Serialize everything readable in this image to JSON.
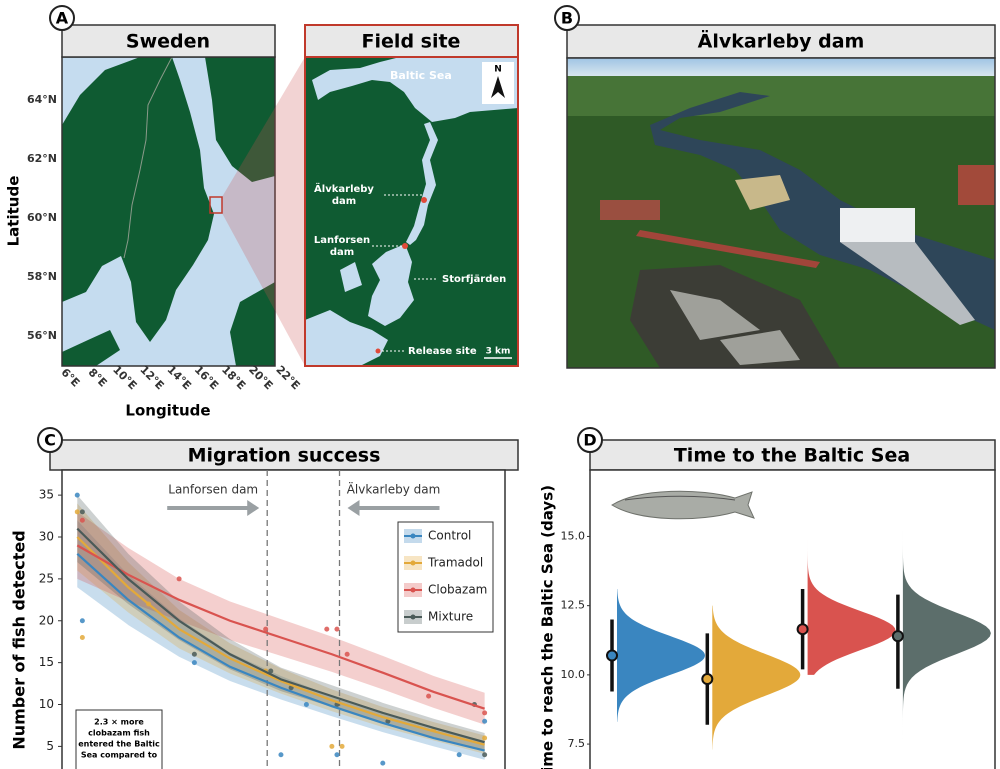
{
  "panels": {
    "a": {
      "label": "A",
      "title_left": "Sweden",
      "title_right": "Field site",
      "y_axis_label": "Latitude",
      "x_axis_label": "Longitude",
      "lat_ticks": [
        "64°N",
        "62°N",
        "60°N",
        "58°N",
        "56°N"
      ],
      "lon_ticks": [
        "6°E",
        "8°E",
        "10°E",
        "12°E",
        "14°E",
        "16°E",
        "18°E",
        "20°E",
        "22°E"
      ],
      "sea": "Baltic Sea",
      "north": "N",
      "upper_dam": [
        "Älvkarleby",
        "dam"
      ],
      "lower_dam": [
        "Lanforsen",
        "dam"
      ],
      "bay": "Storfjärden",
      "release": "Release site",
      "scale": "3 km"
    },
    "b": {
      "label": "B",
      "title": "Älvkarleby dam"
    }
  },
  "chart_data": [
    {
      "type": "line",
      "panel_label": "C",
      "title": "Migration success",
      "y_label": "Number of fish detected",
      "xlim": [
        -0.3,
        8.4
      ],
      "ylim": [
        2.3,
        38
      ],
      "yticks": [
        5,
        10,
        15,
        20,
        25,
        30,
        35
      ],
      "legend": "upper right",
      "x": [
        0,
        1,
        2,
        3,
        4,
        5,
        6,
        7,
        8
      ],
      "vlines": [
        {
          "x": 3.73,
          "label": "Lanforsen dam"
        },
        {
          "x": 5.15,
          "label": "Älvkarleby dam"
        }
      ],
      "annotation": [
        "2.3 × more",
        "clobazam fish",
        "entered the Baltic",
        "Sea compared to"
      ],
      "series": [
        {
          "name": "Control",
          "color": "#3a86c0",
          "values": [
            28,
            22.5,
            18,
            14.5,
            12,
            9.8,
            7.8,
            6,
            4.5
          ],
          "lower": [
            24,
            19.5,
            15.7,
            12.8,
            10.6,
            8.6,
            6.7,
            5,
            3.4
          ],
          "upper": [
            32,
            25.5,
            20.3,
            16.2,
            13.4,
            11,
            8.9,
            7,
            5.6
          ],
          "points": {
            "x": [
              0,
              0.1,
              2.3,
              4,
              4.5,
              5.1,
              6,
              7.5,
              8
            ],
            "y": [
              35,
              20,
              15,
              4,
              10,
              4,
              3,
              4,
              8
            ]
          }
        },
        {
          "name": "Tramadol",
          "color": "#e3a93a",
          "values": [
            30,
            24,
            19,
            15.5,
            12.8,
            10.5,
            8.5,
            6.8,
            5.2
          ],
          "lower": [
            26,
            21,
            16.7,
            13.7,
            11.3,
            9.2,
            7.3,
            5.7,
            4.1
          ],
          "upper": [
            34,
            27,
            21.3,
            17.3,
            14.3,
            11.8,
            9.7,
            7.9,
            6.3
          ],
          "points": {
            "x": [
              0,
              0.1,
              1.4,
              3.7,
              5,
              5.2,
              7,
              8
            ],
            "y": [
              33,
              18,
              22,
              14,
              5,
              5,
              7,
              6
            ]
          }
        },
        {
          "name": "Clobazam",
          "color": "#d9534f",
          "values": [
            29,
            25.5,
            22.5,
            20,
            18,
            16,
            13.8,
            11.5,
            9.5
          ],
          "lower": [
            25,
            22.3,
            20,
            17.7,
            15.8,
            13.9,
            11.8,
            9.6,
            7.6
          ],
          "upper": [
            33,
            28.7,
            25,
            22.3,
            20.2,
            18.1,
            15.8,
            13.4,
            11.4
          ],
          "points": {
            "x": [
              0.1,
              2,
              3.7,
              4.9,
              5.1,
              5.3,
              6.9,
              8
            ],
            "y": [
              32,
              25,
              19,
              19,
              19,
              16,
              11,
              9
            ]
          }
        },
        {
          "name": "Mixture",
          "color": "#4a5a58",
          "values": [
            31,
            25,
            20,
            16,
            13,
            11,
            9,
            7.2,
            5.5
          ],
          "lower": [
            27,
            22,
            17.7,
            14.2,
            11.6,
            9.7,
            7.8,
            6.1,
            4.4
          ],
          "upper": [
            35,
            28,
            22.3,
            17.8,
            14.4,
            12.3,
            10.2,
            8.3,
            6.6
          ],
          "points": {
            "x": [
              0.1,
              2.3,
              3.8,
              4.2,
              5.1,
              6.1,
              7.8,
              8
            ],
            "y": [
              33,
              16,
              14,
              12,
              10,
              8,
              10,
              4
            ]
          }
        }
      ]
    },
    {
      "type": "violin",
      "panel_label": "D",
      "title": "Time to the Baltic Sea",
      "y_label": "Time to reach the Baltic Sea (days)",
      "ylim": [
        6.6,
        17.4
      ],
      "yticks": [
        7.5,
        {
          "value": 10,
          "label": "10.0"
        },
        12.5,
        {
          "value": 15,
          "label": "15.0"
        }
      ],
      "series": [
        {
          "color": "#3a86c0",
          "value": 10.7,
          "ci": [
            9.4,
            12.0
          ],
          "density_center": 10.7,
          "density_spread": 0.7,
          "range": [
            8.3,
            13.1
          ]
        },
        {
          "color": "#e3a93a",
          "value": 9.85,
          "ci": [
            8.2,
            11.5
          ],
          "density_center": 10.0,
          "density_spread": 0.75,
          "range": [
            7.3,
            12.5
          ]
        },
        {
          "color": "#d9534f",
          "value": 11.65,
          "ci": [
            10.2,
            13.1
          ],
          "density_center": 11.6,
          "density_spread": 0.7,
          "range": [
            10.0,
            17.5
          ]
        },
        {
          "color": "#5c6e6b",
          "value": 11.4,
          "ci": [
            9.5,
            12.9
          ],
          "density_center": 11.5,
          "density_spread": 0.75,
          "range": [
            7.3,
            17.2
          ]
        }
      ]
    }
  ]
}
